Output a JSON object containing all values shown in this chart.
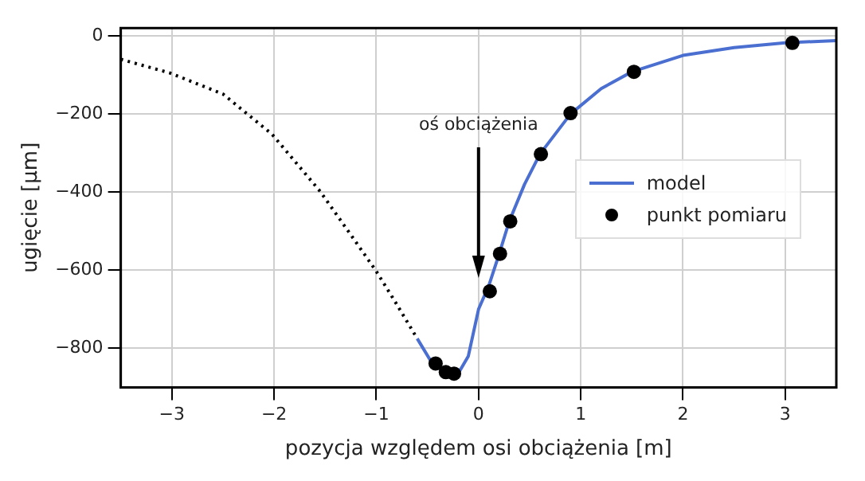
{
  "chart_data": {
    "type": "line",
    "xlabel": "pozycja względem osi obciążenia [m]",
    "ylabel": "ugięcie [µm]",
    "xlim": [
      -3.5,
      3.5
    ],
    "ylim": [
      -900,
      20
    ],
    "xticks": [
      -3,
      -2,
      -1,
      0,
      1,
      2,
      3
    ],
    "yticks": [
      0,
      -200,
      -400,
      -600,
      -800
    ],
    "grid": true,
    "legend": "right",
    "annotations": [
      "oś obciążenia"
    ],
    "series": [
      {
        "color": "#000000",
        "line_style": "dotted",
        "marker": "none",
        "x": [
          -3.5,
          -3.46,
          -3.02,
          -2.5,
          -2.02,
          -1.55,
          -1.24,
          -1.0,
          -0.82,
          -0.6
        ],
        "values": [
          -60,
          -63,
          -95,
          -149,
          -252,
          -398,
          -513,
          -603,
          -679,
          -775
        ]
      },
      {
        "name": "model",
        "color": "#4a6fd0",
        "line_style": "solid",
        "marker": "none",
        "x": [
          -0.6,
          -0.45,
          -0.3,
          -0.2,
          -0.1,
          0,
          0.1,
          0.2,
          0.3,
          0.45,
          0.6,
          0.9,
          1.2,
          1.5,
          2,
          2.5,
          3,
          3.5
        ],
        "values": [
          -775,
          -840,
          -865,
          -865,
          -820,
          -700,
          -640,
          -560,
          -475,
          -380,
          -303,
          -200,
          -135,
          -92,
          -50,
          -30,
          -18,
          -12
        ]
      },
      {
        "type": "scatter",
        "name": "punkt pomiaru",
        "color": "#000000",
        "marker": "circle",
        "x": [
          -0.42,
          -0.32,
          -0.24,
          0.11,
          0.21,
          0.31,
          0.61,
          0.9,
          1.52,
          3.07
        ],
        "values": [
          -839,
          -861,
          -865,
          -654,
          -558,
          -475,
          -303,
          -198,
          -92,
          -18
        ]
      }
    ]
  }
}
